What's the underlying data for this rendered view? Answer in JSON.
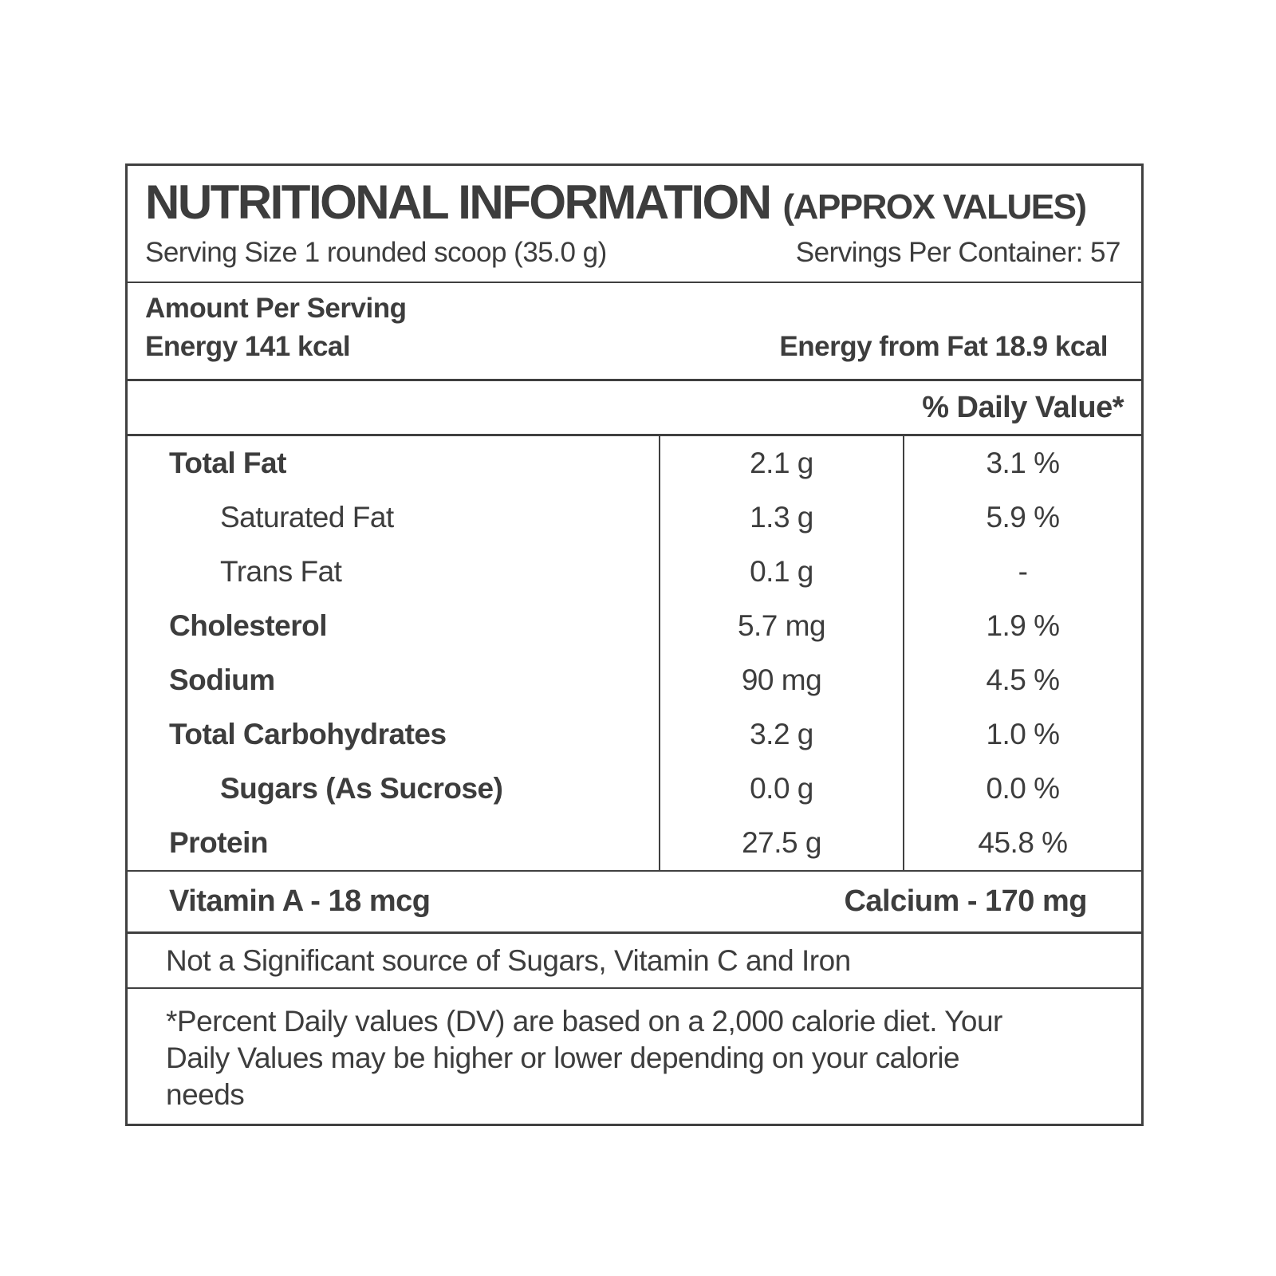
{
  "label": {
    "header": {
      "title": "NUTRITIONAL INFORMATION",
      "subtitle": "(APPROX VALUES)",
      "serving_size": "Serving Size 1 rounded scoop (35.0 g)",
      "servings_per_container": "Servings Per Container: 57"
    },
    "energy_section": {
      "amount_per_serving": "Amount Per Serving",
      "energy": "Energy 141 kcal",
      "energy_from_fat": "Energy from Fat 18.9 kcal"
    },
    "daily_value_header": "% Daily Value*",
    "nutrients": [
      {
        "name": "Total Fat",
        "amount": "2.1 g",
        "daily_value": "3.1 %"
      },
      {
        "name": "Saturated Fat",
        "amount": "1.3 g",
        "daily_value": "5.9 %"
      },
      {
        "name": "Trans Fat",
        "amount": "0.1 g",
        "daily_value": "-"
      },
      {
        "name": "Cholesterol",
        "amount": "5.7 mg",
        "daily_value": "1.9 %"
      },
      {
        "name": "Sodium",
        "amount": "90 mg",
        "daily_value": "4.5 %"
      },
      {
        "name": "Total Carbohydrates",
        "amount": "3.2 g",
        "daily_value": "1.0 %"
      },
      {
        "name": "Sugars (As Sucrose)",
        "amount": "0.0 g",
        "daily_value": "0.0 %"
      },
      {
        "name": "Protein",
        "amount": "27.5 g",
        "daily_value": "45.8 %"
      }
    ],
    "vitamins_row": {
      "vitamin_a": "Vitamin A - 18 mcg",
      "calcium": "Calcium - 170 mg"
    },
    "not_significant": "Not a Significant source of Sugars, Vitamin C and Iron",
    "footnote_lines": [
      "*Percent Daily values (DV) are based on a 2,000 calorie diet. Your",
      "Daily Values may be higher or lower depending on your calorie",
      "needs"
    ],
    "colors": {
      "text": "#3d3d3d",
      "border": "#404040",
      "background": "#ffffff"
    }
  }
}
